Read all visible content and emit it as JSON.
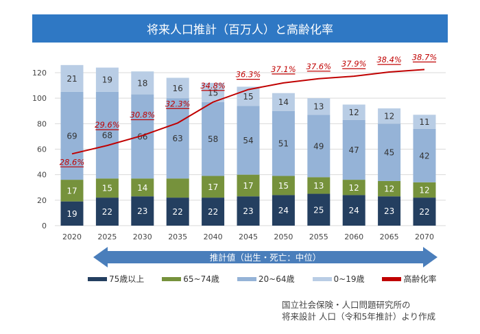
{
  "chart_data": {
    "type": "bar",
    "title": "将来人口推計（百万人）と高齢化率",
    "categories": [
      "2020",
      "2025",
      "2030",
      "2035",
      "2040",
      "2045",
      "2050",
      "2055",
      "2060",
      "2065",
      "2070"
    ],
    "ylim": [
      0,
      130
    ],
    "yticks": [
      0,
      20,
      40,
      60,
      80,
      100,
      120
    ],
    "grid": true,
    "legend_position": "bottom",
    "stacked": true,
    "series": [
      {
        "name": "75歳以上",
        "color": "#243f60",
        "values": [
          19,
          22,
          23,
          22,
          22,
          23,
          24,
          25,
          24,
          23,
          22
        ],
        "labels": [
          "19",
          "22",
          "23",
          "22",
          "22",
          "23",
          "24",
          "25",
          "24",
          "23",
          "22"
        ]
      },
      {
        "name": "65~74歳",
        "color": "#76923c",
        "values": [
          17,
          15,
          14,
          15,
          17,
          17,
          15,
          13,
          12,
          12,
          12
        ],
        "labels": [
          "17",
          "15",
          "14",
          "",
          "17",
          "17",
          "15",
          "13",
          "12",
          "12",
          "12"
        ]
      },
      {
        "name": "20~64歳",
        "color": "#95b3d7",
        "values": [
          69,
          68,
          66,
          63,
          58,
          54,
          51,
          49,
          47,
          45,
          42
        ],
        "labels": [
          "69",
          "68",
          "66",
          "63",
          "58",
          "54",
          "51",
          "49",
          "47",
          "45",
          "42"
        ]
      },
      {
        "name": "0~19歳",
        "color": "#b9cde5",
        "values": [
          21,
          19,
          18,
          16,
          15,
          15,
          14,
          13,
          12,
          12,
          11
        ],
        "labels": [
          "21",
          "19",
          "18",
          "16",
          "15",
          "15",
          "14",
          "13",
          "12",
          "12",
          "11"
        ]
      }
    ],
    "line_series": {
      "name": "高齢化率",
      "color": "#c00000",
      "unit": "%",
      "secondary_ylim": [
        20,
        40
      ],
      "values": [
        28.6,
        29.6,
        30.8,
        32.3,
        34.8,
        36.3,
        37.1,
        37.6,
        37.9,
        38.4,
        38.7
      ],
      "labels": [
        "28.6%",
        "29.6%",
        "30.8%",
        "32.3%",
        "34.8%",
        "36.3%",
        "37.1%",
        "37.6%",
        "37.9%",
        "38.4%",
        "38.7%"
      ]
    },
    "annotation": "推計値（出生・死亡：中位）",
    "arrow_color": "#4a7ebb"
  },
  "source": {
    "line1": "国立社会保険・人口問題研究所の",
    "line2": "将来設計 人口（令和5年推計）より作成"
  }
}
